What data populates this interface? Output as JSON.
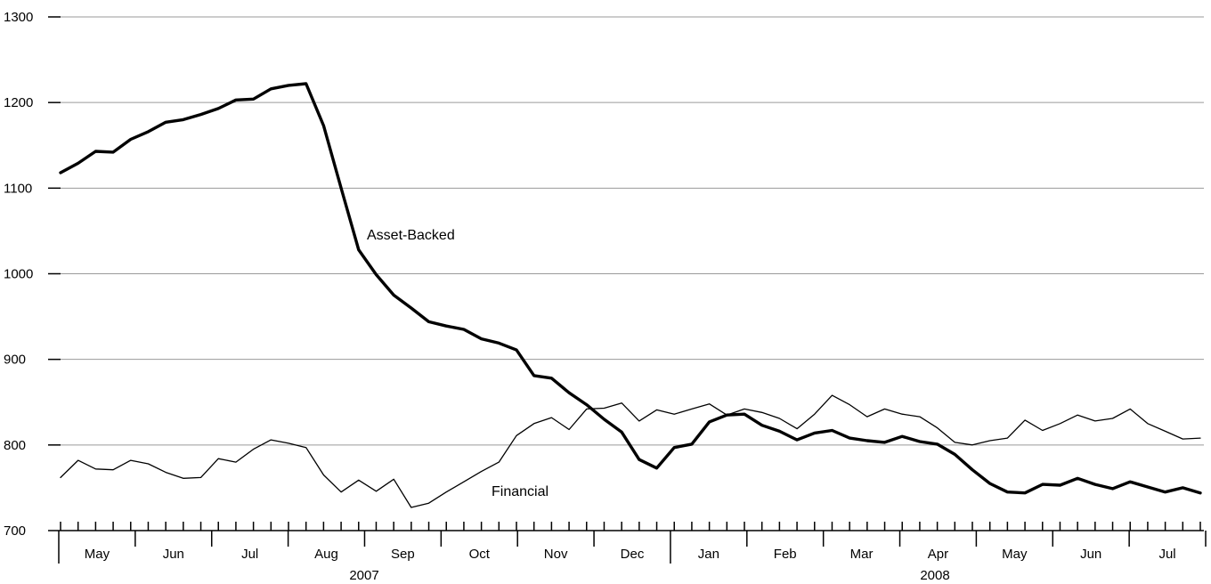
{
  "chart_data": {
    "type": "line",
    "title": "",
    "xlabel": "",
    "ylabel": "",
    "ylim": [
      700,
      1300
    ],
    "yticks": [
      700,
      800,
      900,
      1000,
      1100,
      1200,
      1300
    ],
    "grid": true,
    "legend": "inline labels",
    "x_unit": "weekly, May 2007 to Jul 2008",
    "month_labels": [
      "May",
      "Jun",
      "Jul",
      "Aug",
      "Sep",
      "Oct",
      "Nov",
      "Dec",
      "Jan",
      "Feb",
      "Mar",
      "Apr",
      "May",
      "Jun",
      "Jul"
    ],
    "year_labels": [
      "2007",
      "2008"
    ],
    "series": [
      {
        "name": "Asset-Backed",
        "bold": true,
        "values": [
          1118,
          1129,
          1143,
          1142,
          1157,
          1166,
          1177,
          1180,
          1186,
          1193,
          1203,
          1204,
          1216,
          1220,
          1222,
          1173,
          1100,
          1028,
          999,
          975,
          960,
          944,
          939,
          935,
          924,
          919,
          911,
          881,
          878,
          861,
          847,
          830,
          815,
          783,
          773,
          797,
          801,
          827,
          835,
          836,
          823,
          816,
          806,
          814,
          817,
          808,
          805,
          803,
          810,
          804,
          801,
          789,
          771,
          755,
          745,
          744,
          754,
          753,
          761,
          754,
          749,
          757,
          751,
          745,
          750,
          744
        ]
      },
      {
        "name": "Financial",
        "bold": false,
        "values": [
          762,
          782,
          772,
          771,
          782,
          778,
          768,
          761,
          762,
          784,
          780,
          795,
          806,
          802,
          797,
          765,
          745,
          759,
          746,
          760,
          727,
          732,
          745,
          757,
          769,
          780,
          811,
          825,
          832,
          818,
          842,
          843,
          849,
          828,
          841,
          836,
          842,
          848,
          835,
          842,
          838,
          831,
          819,
          836,
          858,
          847,
          833,
          842,
          836,
          833,
          820,
          803,
          800,
          805,
          808,
          829,
          817,
          825,
          835,
          828,
          831,
          842,
          825,
          816,
          807,
          808
        ]
      }
    ]
  }
}
